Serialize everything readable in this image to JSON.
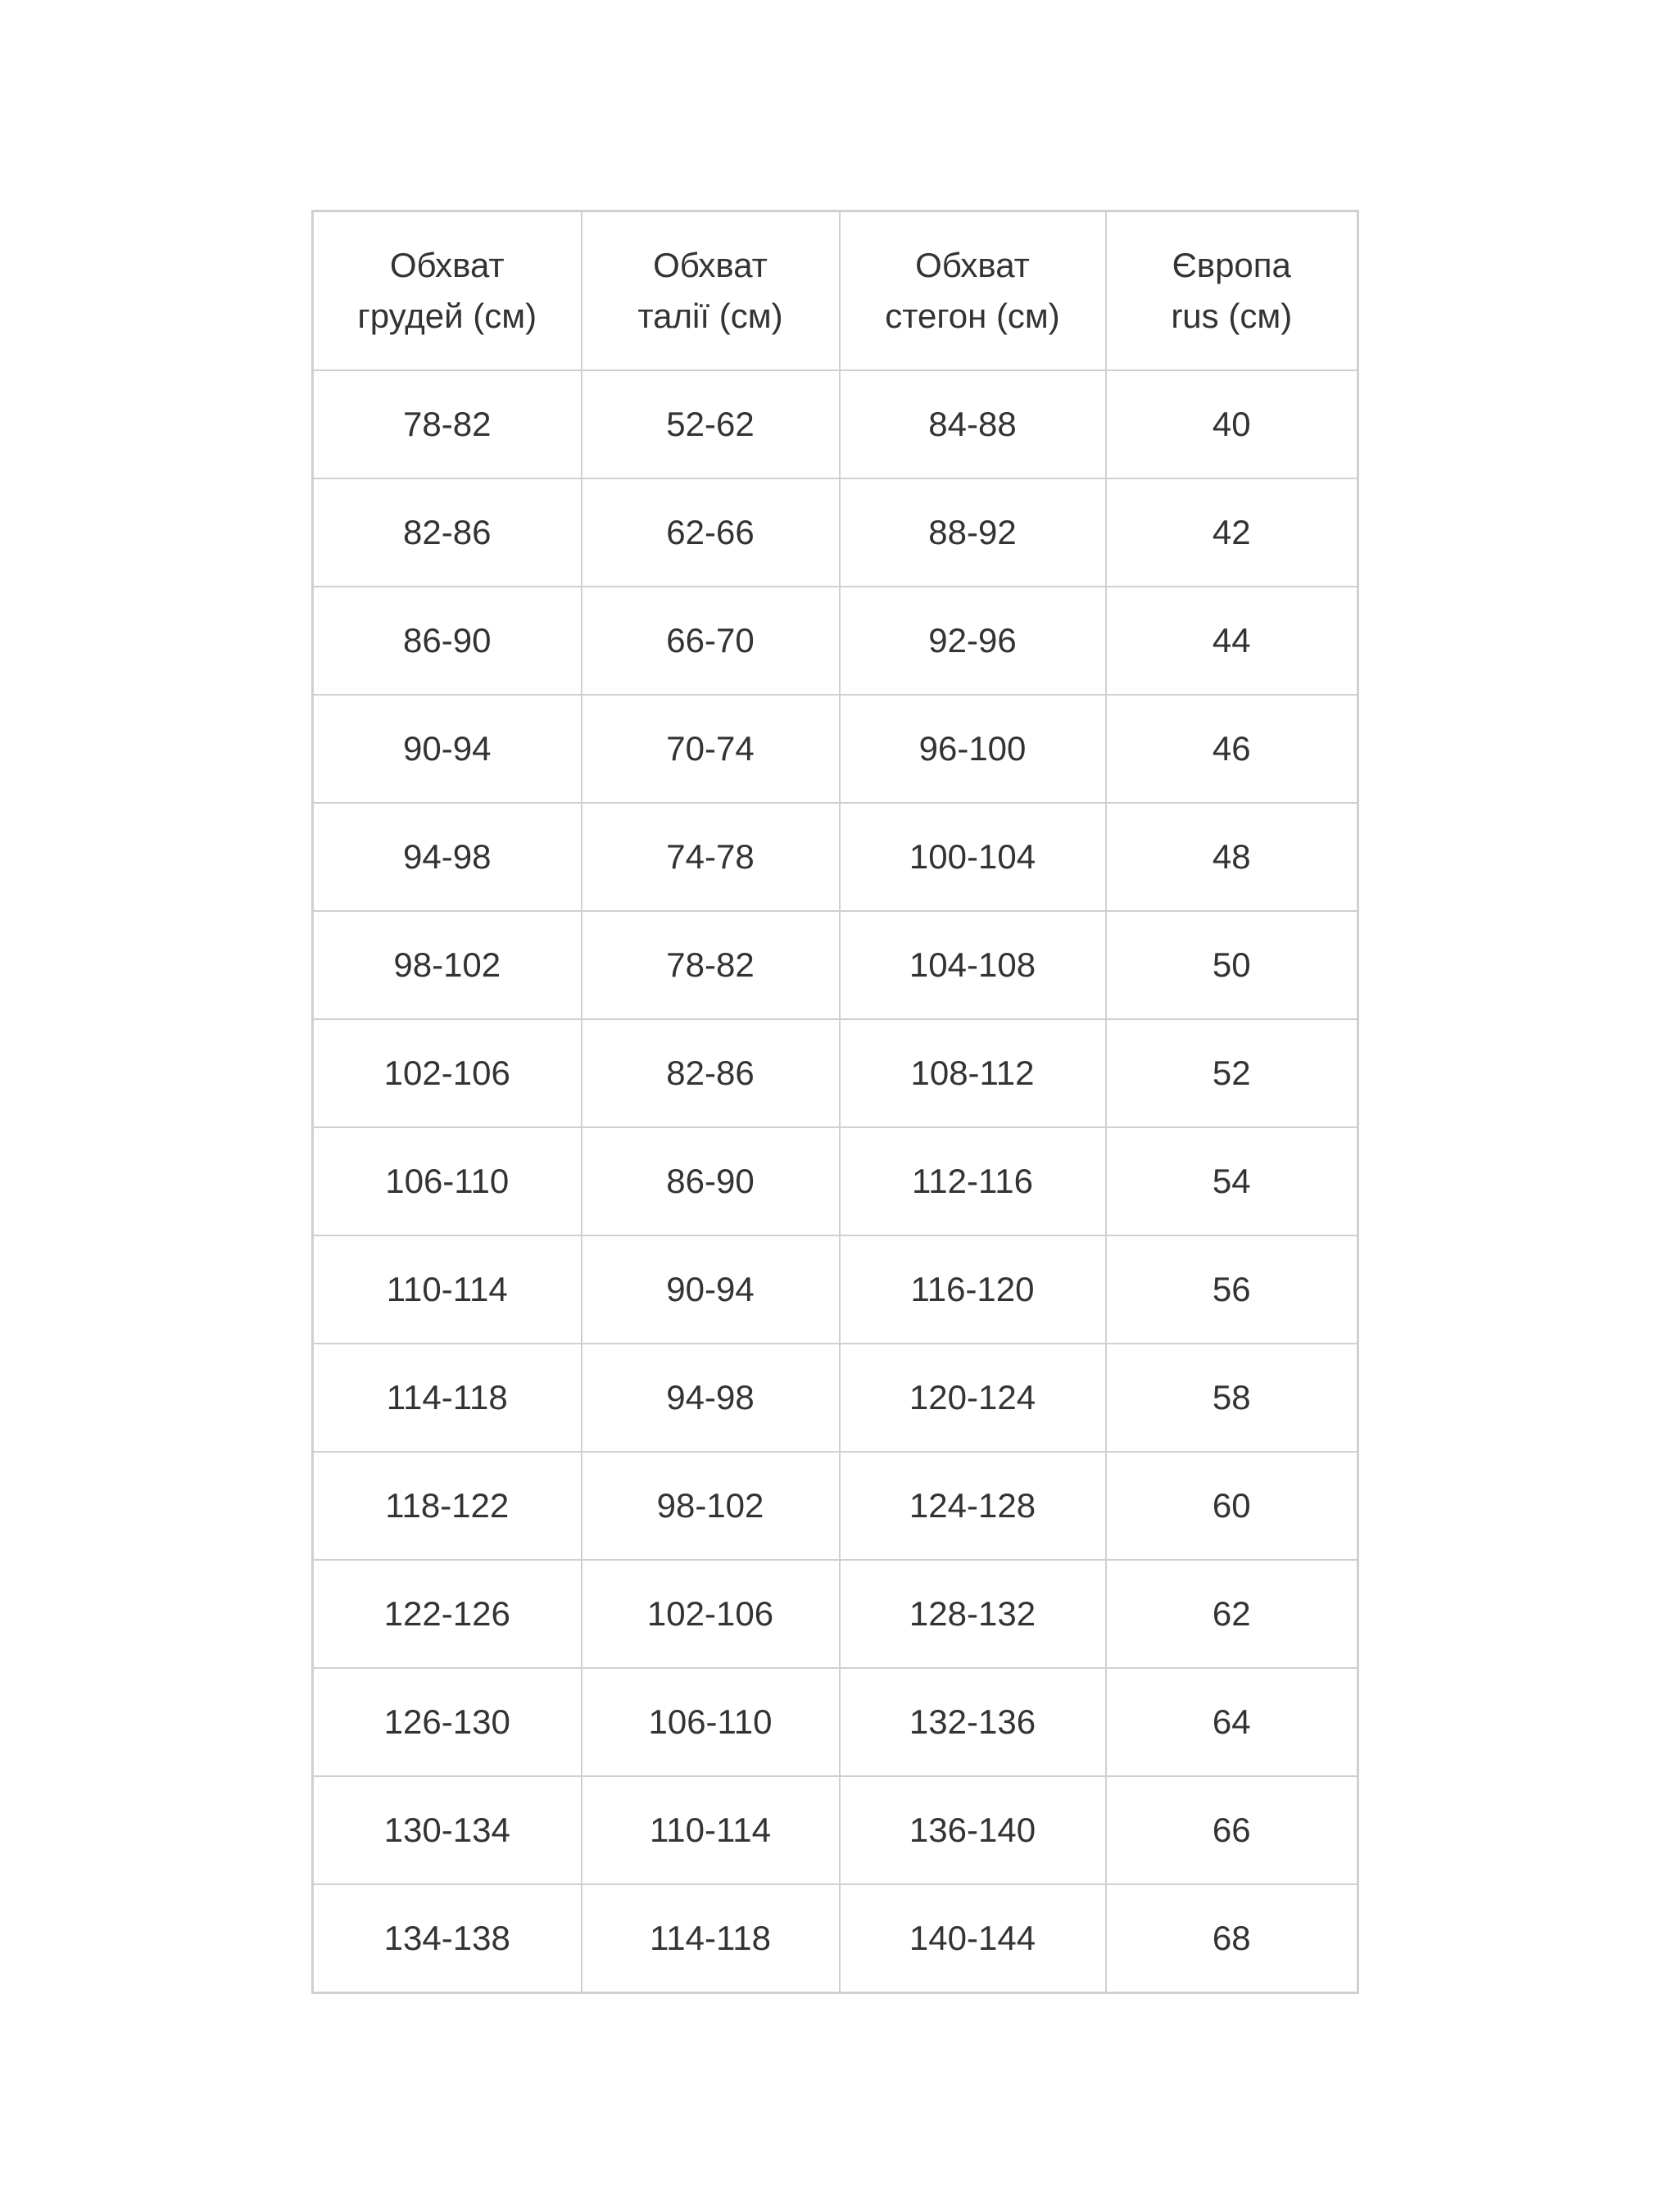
{
  "table": {
    "headers": [
      [
        "Обхват",
        "грудей (см)"
      ],
      [
        "Обхват",
        "талії (см)"
      ],
      [
        "Обхват",
        "стегон (см)"
      ],
      [
        "Європа",
        "rus (см)"
      ]
    ],
    "rows": [
      [
        "78-82",
        "52-62",
        "84-88",
        "40"
      ],
      [
        "82-86",
        "62-66",
        "88-92",
        "42"
      ],
      [
        "86-90",
        "66-70",
        "92-96",
        "44"
      ],
      [
        "90-94",
        "70-74",
        "96-100",
        "46"
      ],
      [
        "94-98",
        "74-78",
        "100-104",
        "48"
      ],
      [
        "98-102",
        "78-82",
        "104-108",
        "50"
      ],
      [
        "102-106",
        "82-86",
        "108-112",
        "52"
      ],
      [
        "106-110",
        "86-90",
        "112-116",
        "54"
      ],
      [
        "110-114",
        "90-94",
        "116-120",
        "56"
      ],
      [
        "114-118",
        "94-98",
        "120-124",
        "58"
      ],
      [
        "118-122",
        "98-102",
        "124-128",
        "60"
      ],
      [
        "122-126",
        "102-106",
        "128-132",
        "62"
      ],
      [
        "126-130",
        "106-110",
        "132-136",
        "64"
      ],
      [
        "130-134",
        "110-114",
        "136-140",
        "66"
      ],
      [
        "134-138",
        "114-118",
        "140-144",
        "68"
      ]
    ]
  }
}
